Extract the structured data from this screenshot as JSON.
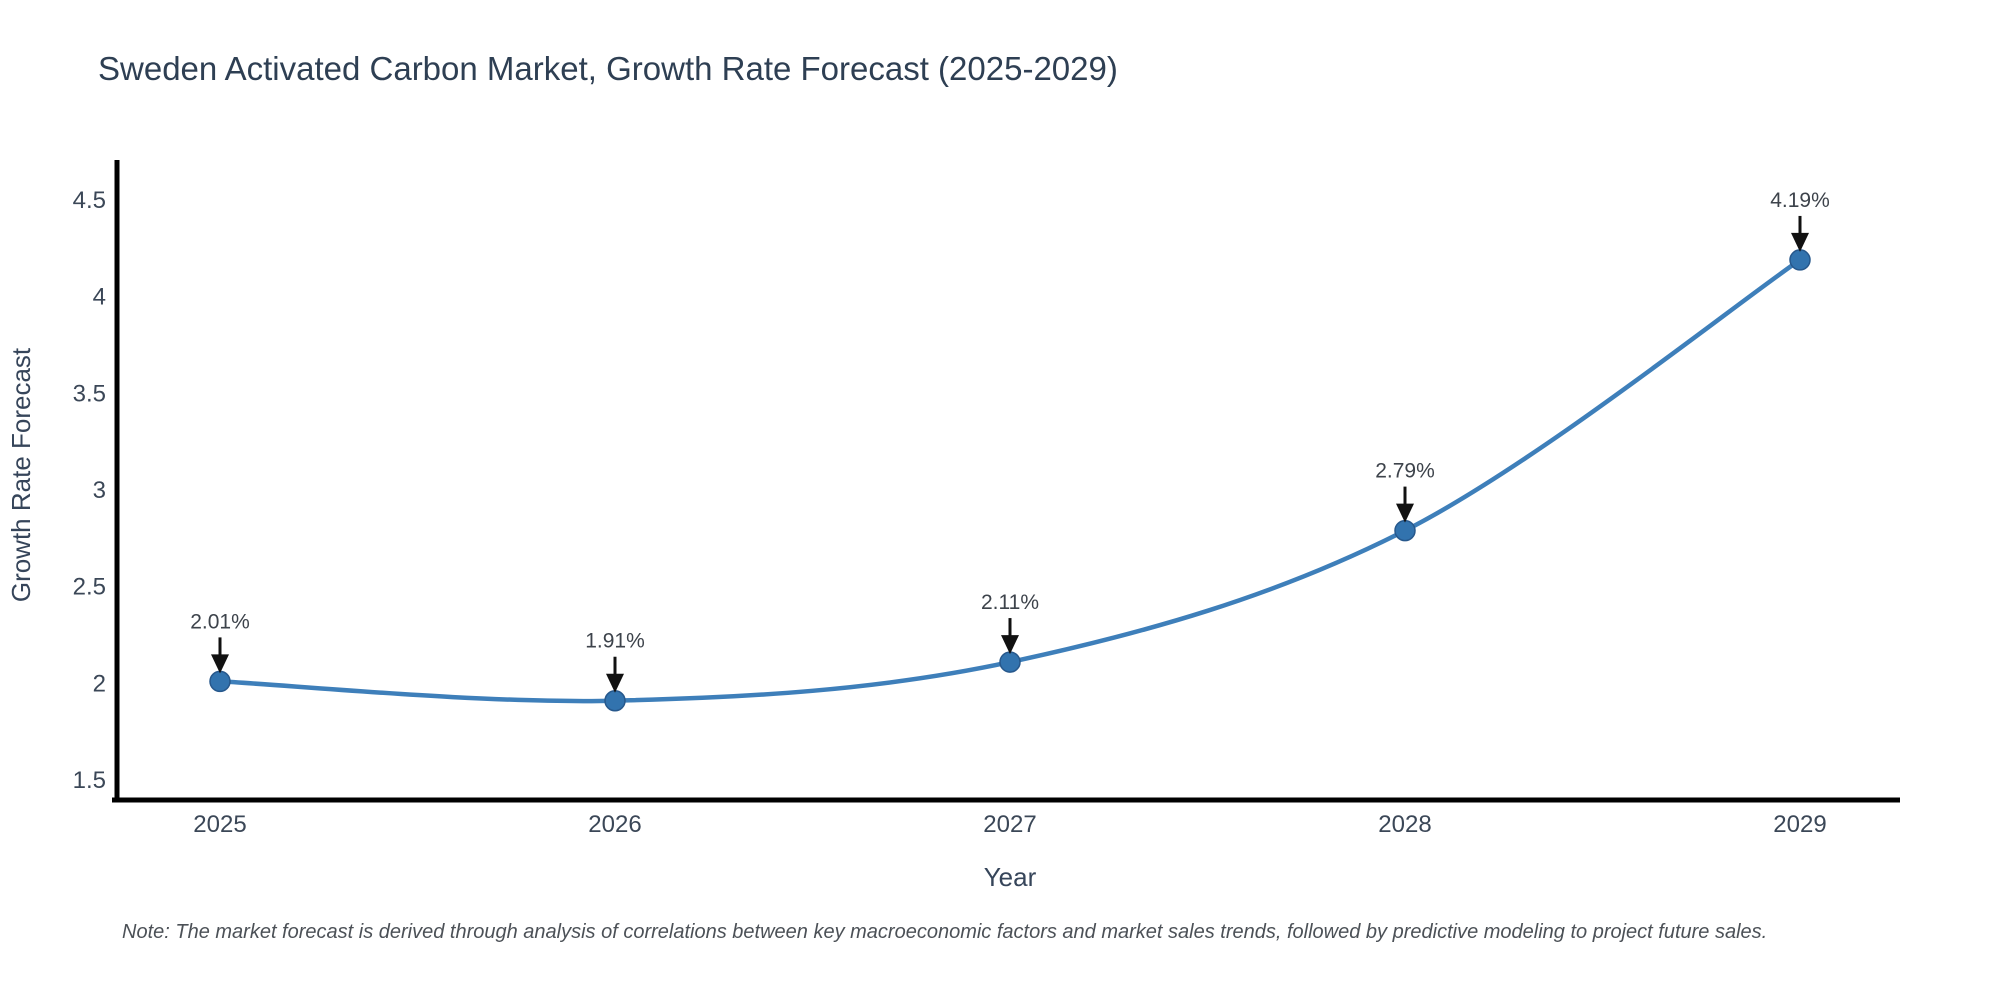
{
  "note": "Note: The market forecast is derived through analysis of correlations between key macroeconomic factors and market sales trends, followed by predictive modeling to project future sales.",
  "chart_data": {
    "type": "line",
    "line_shape": "spline",
    "title": "Sweden Activated Carbon Market, Growth Rate Forecast (2025-2029)",
    "categories": [
      "2025",
      "2026",
      "2027",
      "2028",
      "2029"
    ],
    "series": [
      {
        "name": "Growth Rate Forecast",
        "values": [
          2.01,
          1.91,
          2.11,
          2.79,
          4.19
        ]
      }
    ],
    "point_labels": [
      "2.01%",
      "1.91%",
      "2.11%",
      "2.79%",
      "4.19%"
    ],
    "xlabel": "Year",
    "ylabel": "Growth Rate Forecast",
    "ylim": [
      1.4,
      4.72
    ],
    "yticks": [
      1.5,
      2,
      2.5,
      3,
      3.5,
      4,
      4.5
    ],
    "grid": false,
    "legend": "none",
    "markers": true,
    "annotation_arrows": true,
    "colors": {
      "line": "#3e7fba",
      "marker": "#3273ae",
      "marker_edge": "#27588c",
      "axis": "#000000",
      "arrow": "#111111"
    }
  }
}
